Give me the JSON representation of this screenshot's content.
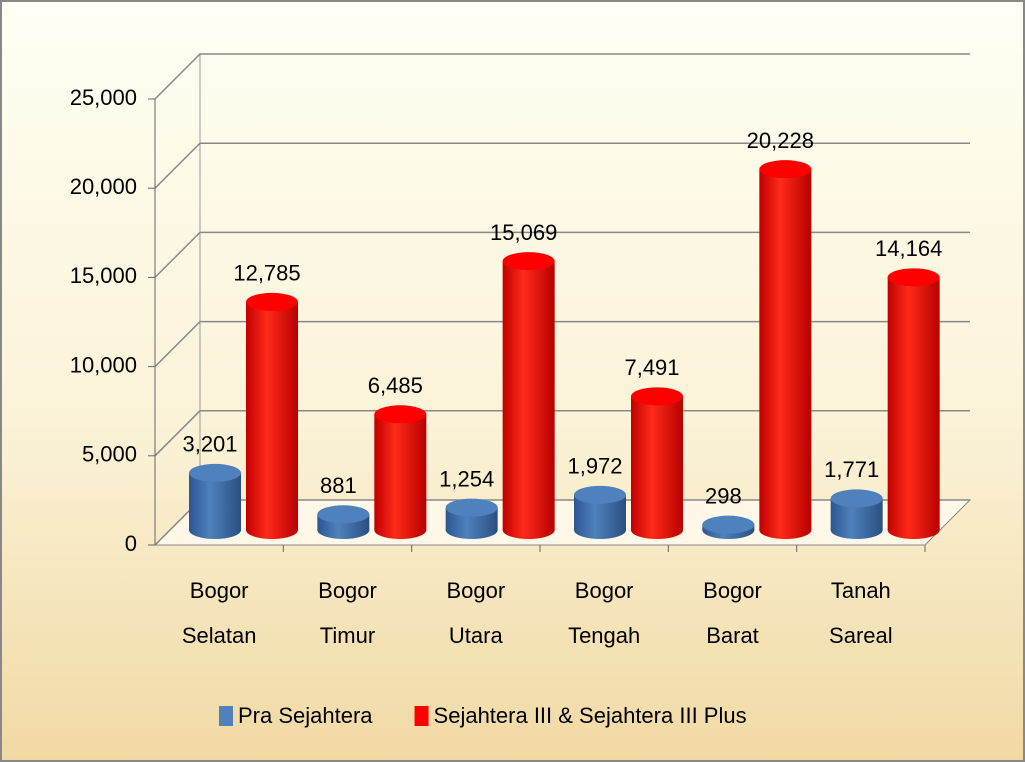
{
  "chart_data": {
    "type": "bar3d",
    "categories": [
      "Bogor Selatan",
      "Bogor Timur",
      "Bogor Utara",
      "Bogor Tengah",
      "Bogor Barat",
      "Tanah Sareal"
    ],
    "series": [
      {
        "name": "Pra Sejahtera",
        "color": "#4f81bd",
        "values": [
          3201,
          881,
          1254,
          1972,
          298,
          1771
        ],
        "value_labels": [
          "3,201",
          "881",
          "1,254",
          "1,972",
          "298",
          "1,771"
        ]
      },
      {
        "name": "Sejahtera III & Sejahtera III Plus",
        "color": "#ff0000",
        "values": [
          12785,
          6485,
          15069,
          7491,
          20228,
          14164
        ],
        "value_labels": [
          "12,785",
          "6,485",
          "15,069",
          "7,491",
          "20,228",
          "14,164"
        ]
      }
    ],
    "ylim": [
      0,
      25000
    ],
    "yticks": [
      0,
      {
        "value": 5000,
        "label": "5,000"
      },
      {
        "value": 10000,
        "label": "10,000"
      },
      {
        "value": 15000,
        "label": "15,000"
      },
      {
        "value": 20000,
        "label": "20,000"
      },
      {
        "value": 25000,
        "label": "25,000"
      }
    ],
    "grid": true,
    "legend": "bottom"
  }
}
